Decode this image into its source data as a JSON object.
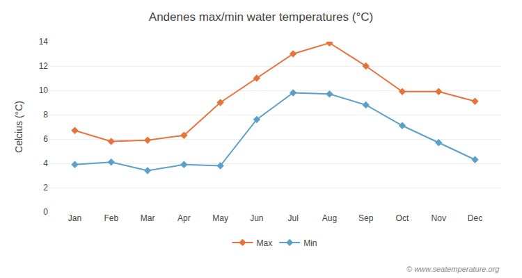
{
  "chart_data": {
    "type": "line",
    "title": "Andenes max/min water temperatures (°C)",
    "ylabel": "Celcius (°C)",
    "categories": [
      "Jan",
      "Feb",
      "Mar",
      "Apr",
      "May",
      "Jun",
      "Jul",
      "Aug",
      "Sep",
      "Oct",
      "Nov",
      "Dec"
    ],
    "series": [
      {
        "name": "Max",
        "color": "#e8733a",
        "values": [
          6.7,
          5.8,
          5.9,
          6.3,
          9.0,
          11.0,
          13.0,
          13.9,
          12.0,
          9.9,
          9.9,
          9.1
        ]
      },
      {
        "name": "Min",
        "color": "#5aa0c8",
        "values": [
          3.9,
          4.1,
          3.4,
          3.9,
          3.8,
          7.6,
          9.8,
          9.7,
          8.8,
          7.1,
          5.7,
          4.3
        ]
      }
    ],
    "ylim": [
      0,
      14
    ],
    "yticks": [
      0,
      2,
      4,
      6,
      8,
      10,
      12,
      14
    ],
    "grid": true,
    "legend": "bottom",
    "marker": "diamond",
    "annotations": [
      "© www.seatemperature.org"
    ]
  }
}
